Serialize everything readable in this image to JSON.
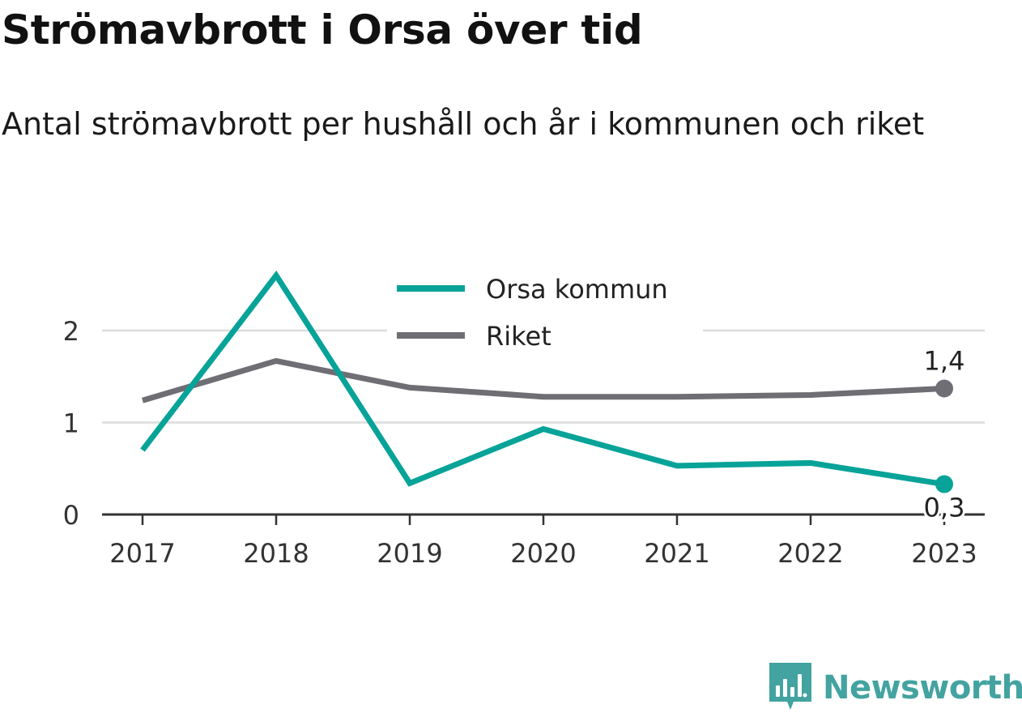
{
  "title": "Strömavbrott i Orsa över tid",
  "subtitle": "Antal strömavbrott per hushåll och år i kommunen och riket",
  "brand": {
    "name": "Newsworthy",
    "logo_icon": "bar-chart-speech-bubble-icon",
    "color": "#43a3a0"
  },
  "chart_data": {
    "type": "line",
    "x": [
      "2017",
      "2018",
      "2019",
      "2020",
      "2021",
      "2022",
      "2023"
    ],
    "ylim": [
      0,
      2.5
    ],
    "yticks": [
      "0",
      "1",
      "2"
    ],
    "grid": true,
    "legend_position": "top-center",
    "series": [
      {
        "name": "Orsa kommun",
        "color": "#07a398",
        "values": [
          0.7,
          2.6,
          0.34,
          0.93,
          0.53,
          0.56,
          0.33
        ],
        "end_label": "0,3",
        "end_label_position": "below"
      },
      {
        "name": "Riket",
        "color": "#6f6e74",
        "values": [
          1.24,
          1.67,
          1.38,
          1.28,
          1.28,
          1.3,
          1.37
        ],
        "end_label": "1,4",
        "end_label_position": "above"
      }
    ]
  }
}
